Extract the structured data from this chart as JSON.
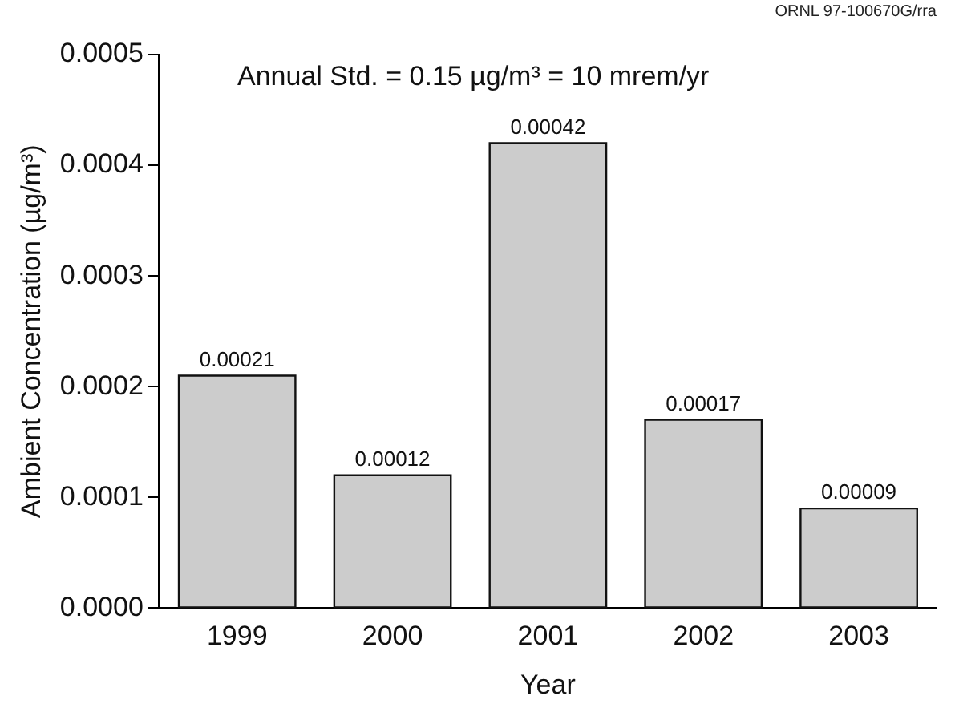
{
  "chart_data": {
    "type": "bar",
    "xlabel": "Year",
    "ylabel": "Ambient Concentration (µg/m³)",
    "categories": [
      "1999",
      "2000",
      "2001",
      "2002",
      "2003"
    ],
    "values": [
      0.00021,
      0.00012,
      0.00042,
      0.00017,
      9e-05
    ],
    "color": "#cccccc",
    "value_labels": [
      "0.00021",
      "0.00012",
      "0.00042",
      "0.00017",
      "0.00009"
    ],
    "ylim": [
      0,
      0.0005
    ],
    "yticks": [
      {
        "value": 0,
        "label": "0.0000"
      },
      {
        "value": 0.0001,
        "label": "0.0001"
      },
      {
        "value": 0.0002,
        "label": "0.0002"
      },
      {
        "value": 0.0003,
        "label": "0.0003"
      },
      {
        "value": 0.0004,
        "label": "0.0004"
      },
      {
        "value": 0.0005,
        "label": "0.0005"
      }
    ],
    "grid": false,
    "legend": false,
    "annotations": [
      "ORNL 97-100670G/rra",
      "Annual Std. = 0.15 µg/m³ = 10 mrem/yr"
    ]
  }
}
